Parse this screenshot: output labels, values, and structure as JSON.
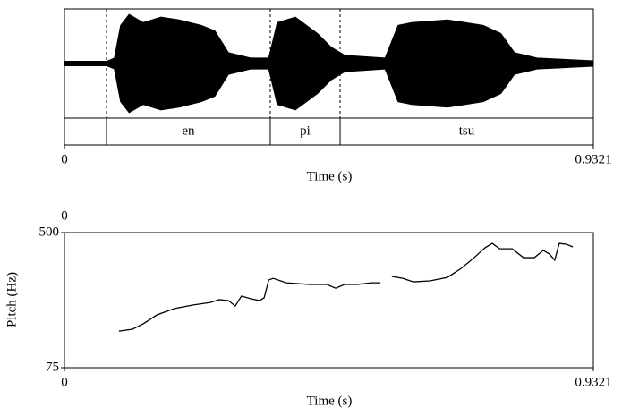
{
  "chart_data": [
    {
      "type": "waveform",
      "x": [
        0,
        0.074,
        0.088,
        0.099,
        0.114,
        0.139,
        0.17,
        0.202,
        0.241,
        0.265,
        0.289,
        0.328,
        0.36,
        0.375,
        0.407,
        0.446,
        0.47,
        0.494,
        0.565,
        0.588,
        0.612,
        0.675,
        0.738,
        0.769,
        0.793,
        0.833,
        0.932
      ],
      "values": [
        0.04,
        0.04,
        0.1,
        0.7,
        0.9,
        0.75,
        0.85,
        0.8,
        0.7,
        0.6,
        0.2,
        0.1,
        0.1,
        0.75,
        0.85,
        0.55,
        0.3,
        0.15,
        0.1,
        0.7,
        0.75,
        0.8,
        0.7,
        0.55,
        0.2,
        0.1,
        0.05
      ],
      "ylim": [
        -1,
        1
      ],
      "xlim": [
        0,
        0.9321
      ],
      "xticks": [
        0,
        0.9321
      ],
      "xlabel": "Time (s)",
      "boundaries": [
        0.0741,
        0.3627,
        0.4858
      ],
      "intervals": [
        null,
        "en",
        "pi",
        "tsu"
      ],
      "color": "#000000"
    },
    {
      "type": "line",
      "x": [
        0.096,
        0.12,
        0.139,
        0.163,
        0.194,
        0.226,
        0.257,
        0.273,
        0.289,
        0.301,
        0.312,
        0.328,
        0.344,
        0.352,
        0.36,
        0.368,
        0.391,
        0.431,
        0.462,
        0.478,
        0.494,
        0.517,
        0.541,
        0.557,
        null,
        0.577,
        0.596,
        0.615,
        0.644,
        0.675,
        0.699,
        0.722,
        0.741,
        0.754,
        0.767,
        0.789,
        0.809,
        0.828,
        0.844,
        0.855,
        0.864,
        0.872,
        0.885,
        0.896
      ],
      "values": [
        190,
        196,
        213,
        241,
        261,
        272,
        280,
        289,
        286,
        269,
        300,
        292,
        286,
        295,
        351,
        356,
        342,
        337,
        337,
        325,
        337,
        337,
        342,
        342,
        null,
        362,
        356,
        345,
        348,
        359,
        387,
        421,
        452,
        466,
        449,
        449,
        421,
        421,
        444,
        432,
        413,
        466,
        463,
        455
      ],
      "xlim": [
        0,
        0.9321
      ],
      "xticks": [
        0,
        0.9321
      ],
      "xlabel": "Time (s)",
      "ylim": [
        75,
        500
      ],
      "yticks": [
        75,
        500
      ],
      "ylabel": "Pitch (Hz)",
      "annotation": "0",
      "color": "#000000"
    }
  ]
}
